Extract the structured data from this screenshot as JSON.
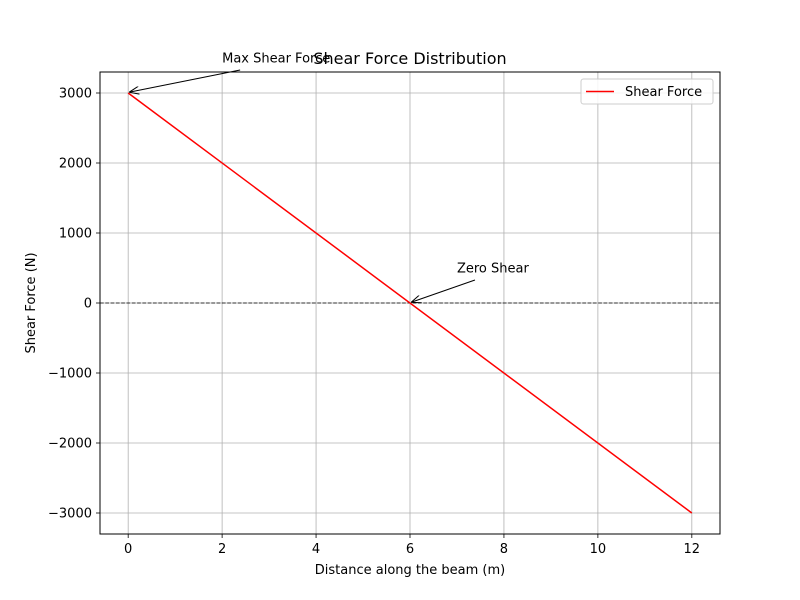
{
  "chart_data": {
    "type": "line",
    "title": "Shear Force Distribution",
    "xlabel": "Distance along the beam (m)",
    "ylabel": "Shear Force (N)",
    "xlim": [
      -0.6,
      12.6
    ],
    "ylim": [
      -3300,
      3300
    ],
    "xticks": [
      0,
      2,
      4,
      6,
      8,
      10,
      12
    ],
    "xtick_labels": [
      "0",
      "2",
      "4",
      "6",
      "8",
      "10",
      "12"
    ],
    "yticks": [
      3000,
      2000,
      1000,
      0,
      -1000,
      -2000,
      -3000
    ],
    "ytick_labels": [
      "3000",
      "2000",
      "1000",
      "0",
      "−1000",
      "−2000",
      "−3000"
    ],
    "grid": true,
    "legend_position": "top-right",
    "series": [
      {
        "name": "Shear Force",
        "color": "#ff0000",
        "x": [
          0,
          12
        ],
        "y": [
          3000,
          -3000
        ]
      }
    ],
    "reference_lines": [
      {
        "axis": "y",
        "value": 0,
        "color": "#000000",
        "style": "dashed"
      }
    ],
    "annotations": [
      {
        "text": "Max Shear Force",
        "point": [
          0,
          3000
        ],
        "text_pos": [
          2,
          3500
        ]
      },
      {
        "text": "Zero Shear",
        "point": [
          6,
          0
        ],
        "text_pos": [
          7,
          500
        ]
      }
    ]
  }
}
